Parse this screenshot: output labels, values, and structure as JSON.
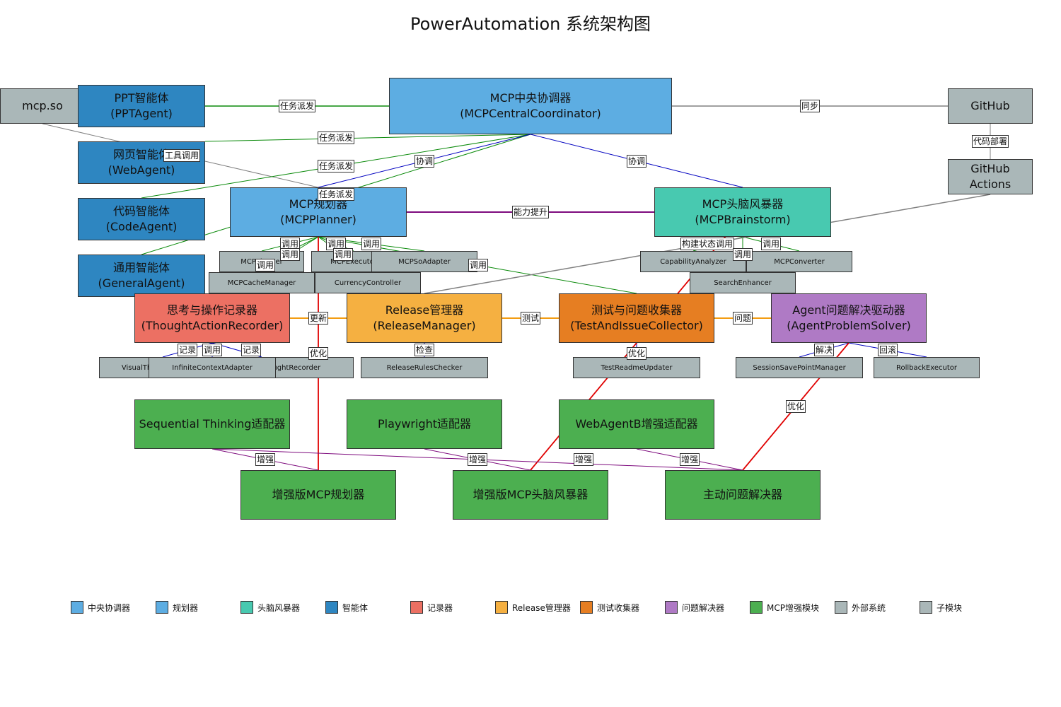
{
  "title": "PowerAutomation 系统架构图",
  "colors": {
    "central": "#5dade2",
    "planner": "#5dade2",
    "brain": "#48c9b0",
    "agent": "#2e86c1",
    "recorder": "#ec7063",
    "release": "#f5b041",
    "test": "#e67e22",
    "solver": "#af7ac5",
    "enhance": "#4caf50",
    "external": "#aab7b8",
    "submodule": "#aab7b8",
    "edge_green": "#0a8a0a",
    "edge_blue": "#0000c0",
    "edge_purple": "#7d0a7d",
    "edge_gray": "#808080",
    "edge_orange": "#f39c12",
    "edge_red": "#e00000",
    "edge_green2": "#1a8f1a"
  },
  "nodes": {
    "mcpso": {
      "label": "mcp.so"
    },
    "ppt": {
      "label": "PPT智能体\n(PPTAgent)"
    },
    "web": {
      "label": "网页智能体\n(WebAgent)"
    },
    "code": {
      "label": "代码智能体\n(CodeAgent)"
    },
    "general": {
      "label": "通用智能体\n(GeneralAgent)"
    },
    "central": {
      "label": "MCP中央协调器\n(MCPCentralCoordinator)"
    },
    "github": {
      "label": "GitHub"
    },
    "ghactions": {
      "label": "GitHub Actions"
    },
    "planner": {
      "label": "MCP规划器\n(MCPPlanner)"
    },
    "brain": {
      "label": "MCP头脑风暴器\n(MCPBrainstorm)"
    },
    "sub_planner": {
      "label": "MCPPlanner"
    },
    "sub_executor": {
      "label": "MCPExecutor"
    },
    "sub_soadapter": {
      "label": "MCPSoAdapter"
    },
    "sub_cache": {
      "label": "MCPCacheManager"
    },
    "sub_currency": {
      "label": "CurrencyController"
    },
    "sub_capability": {
      "label": "CapabilityAnalyzer"
    },
    "sub_converter": {
      "label": "MCPConverter"
    },
    "sub_search": {
      "label": "SearchEnhancer"
    },
    "recorder": {
      "label": "思考与操作记录器\n(ThoughtActionRecorder)"
    },
    "release": {
      "label": "Release管理器\n(ReleaseManager)"
    },
    "test": {
      "label": "测试与问题收集器\n(TestAndIssueCollector)"
    },
    "solver": {
      "label": "Agent问题解决驱动器\n(AgentProblemSolver)"
    },
    "sub_visual": {
      "label": "VisualThoughtRecorder"
    },
    "sub_infinite": {
      "label": "InfiniteContextAdapter"
    },
    "sub_thought": {
      "label": "ThoughtRecorder"
    },
    "sub_rules": {
      "label": "ReleaseRulesChecker"
    },
    "sub_readme": {
      "label": "TestReadmeUpdater"
    },
    "sub_savepoint": {
      "label": "SessionSavePointManager"
    },
    "sub_rollback": {
      "label": "RollbackExecutor"
    },
    "seq": {
      "label": "Sequential Thinking适配器"
    },
    "playwright": {
      "label": "Playwright适配器"
    },
    "webagentb": {
      "label": "WebAgentB增强适配器"
    },
    "eplanner": {
      "label": "增强版MCP规划器"
    },
    "ebrain": {
      "label": "增强版MCP头脑风暴器"
    },
    "esolver": {
      "label": "主动问题解决器"
    }
  },
  "edge_labels": {
    "task1": "任务派发",
    "task2": "任务派发",
    "task3": "任务派发",
    "task4": "任务派发",
    "sync": "同步",
    "deploy": "代码部署",
    "tool": "工具调用",
    "coord1": "协调",
    "coord2": "协调",
    "ability": "能力提升",
    "call1": "调用",
    "call2": "调用",
    "call3": "调用",
    "call4": "调用",
    "call5": "调用",
    "call6": "调用",
    "call7": "调用",
    "build": "构建状态调用",
    "bcall1": "调用",
    "bcall2": "调用",
    "update": "更新",
    "test": "测试",
    "issue": "问题",
    "rec1": "记录",
    "rec2": "调用",
    "rec3": "记录",
    "check": "检查",
    "opt1": "优化",
    "opt2": "优化",
    "opt3": "优化",
    "solve": "解决",
    "rollback": "回滚",
    "enh1": "增强",
    "enh2": "增强",
    "enh3": "增强",
    "enh4": "增强"
  },
  "legend": [
    {
      "label": "中央协调器",
      "color": "#5dade2"
    },
    {
      "label": "规划器",
      "color": "#5dade2"
    },
    {
      "label": "头脑风暴器",
      "color": "#48c9b0"
    },
    {
      "label": "智能体",
      "color": "#2e86c1"
    },
    {
      "label": "记录器",
      "color": "#ec7063"
    },
    {
      "label": "Release管理器",
      "color": "#f5b041"
    },
    {
      "label": "测试收集器",
      "color": "#e67e22"
    },
    {
      "label": "问题解决器",
      "color": "#af7ac5"
    },
    {
      "label": "MCP增强模块",
      "color": "#4caf50"
    },
    {
      "label": "外部系统",
      "color": "#aab7b8"
    },
    {
      "label": "子模块",
      "color": "#aab7b8"
    }
  ]
}
